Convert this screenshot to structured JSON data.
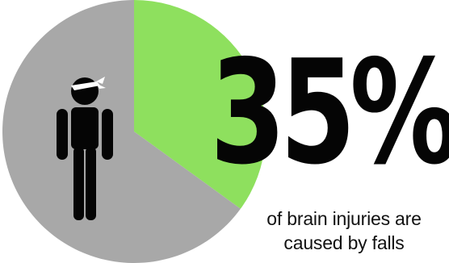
{
  "chart_data": {
    "type": "pie",
    "values": [
      35,
      65
    ],
    "colors": [
      "#8ee05e",
      "#a8a8a8"
    ],
    "highlight_text": "35%",
    "annotation_lines": [
      "of brain injuries are",
      "caused by falls"
    ],
    "icon": "injured-person-icon"
  },
  "colors": {
    "background": "#ffffff",
    "figure": "#050505",
    "bandage": "#ffffff"
  }
}
